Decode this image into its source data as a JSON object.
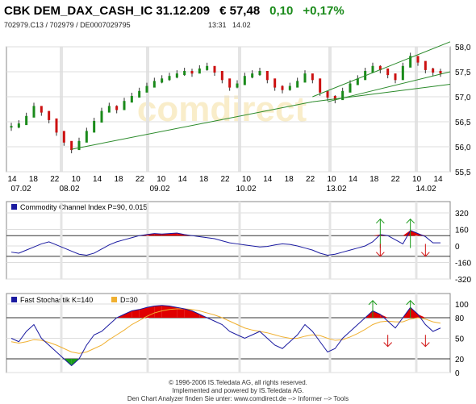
{
  "header": {
    "name": "CBK DEM_DAX_CASH_IC 31.12.209",
    "price": "€ 57,48",
    "change": "0,10",
    "change_pct": "+0,17%",
    "change_color": "#1a8a1a"
  },
  "subheader": {
    "ids": "702979.C13  /  702979  /  DE0007029795",
    "time": "13:31",
    "date": "14.02"
  },
  "watermark": "comdirect",
  "chart_data": [
    {
      "type": "line",
      "panel": "price",
      "x_tick_labels": [
        "14",
        "18",
        "22",
        "10",
        "14",
        "18",
        "22",
        "10",
        "14",
        "18",
        "22",
        "10",
        "14",
        "18",
        "22",
        "10",
        "14",
        "18",
        "22",
        "10",
        "14"
      ],
      "x_date_labels": [
        "07.02",
        "08.02",
        "09.02",
        "10.02",
        "13.02",
        "14.02"
      ],
      "y_tick_labels": [
        "58,0",
        "57,5",
        "57,0",
        "56,5",
        "56,0",
        "55,5"
      ],
      "ylim": [
        55.5,
        58.0
      ],
      "series": [
        {
          "values": [
            56.4,
            56.45,
            56.6,
            56.8,
            56.7,
            56.55,
            56.3,
            56.1,
            55.95,
            56.1,
            56.3,
            56.5,
            56.7,
            56.8,
            56.75,
            56.9,
            57.0,
            57.1,
            57.2,
            57.3,
            57.35,
            57.4,
            57.45,
            57.5,
            57.48,
            57.55,
            57.6,
            57.5,
            57.35,
            57.2,
            57.25,
            57.4,
            57.45,
            57.5,
            57.35,
            57.2,
            57.15,
            57.2,
            57.3,
            57.45,
            57.35,
            57.1,
            57.0,
            56.95,
            57.1,
            57.25,
            57.35,
            57.5,
            57.6,
            57.55,
            57.45,
            57.35,
            57.6,
            57.8,
            57.7,
            57.55,
            57.5,
            57.48
          ]
        }
      ],
      "candles": true,
      "trendlines": 4,
      "grid": true
    },
    {
      "type": "line",
      "panel": "cci",
      "legend": "Commodity Channel Index P=90, 0.015",
      "y_tick_labels": [
        "320",
        "160",
        "0",
        "-160",
        "-320"
      ],
      "ylim": [
        -320,
        320
      ],
      "series": [
        {
          "values": [
            -60,
            -70,
            -40,
            -10,
            20,
            40,
            10,
            -20,
            -50,
            -80,
            -90,
            -70,
            -30,
            10,
            40,
            60,
            80,
            100,
            110,
            120,
            115,
            120,
            125,
            110,
            100,
            90,
            80,
            70,
            50,
            30,
            20,
            10,
            0,
            -10,
            -5,
            10,
            20,
            15,
            0,
            -20,
            -40,
            -70,
            -90,
            -80,
            -60,
            -40,
            -20,
            0,
            40,
            110,
            100,
            60,
            20,
            150,
            120,
            90,
            30,
            30
          ]
        }
      ],
      "fill_above": 100,
      "fill_below": -100
    },
    {
      "type": "line",
      "panel": "stochastic",
      "legend": [
        "Fast Stochastik K=140",
        "D=30"
      ],
      "y_tick_labels": [
        "100",
        "80",
        "50",
        "20",
        "0"
      ],
      "ylim": [
        0,
        100
      ],
      "series": [
        {
          "values": [
            50,
            45,
            60,
            70,
            50,
            40,
            30,
            20,
            10,
            20,
            40,
            55,
            60,
            70,
            80,
            85,
            90,
            92,
            95,
            97,
            98,
            97,
            95,
            93,
            90,
            85,
            80,
            75,
            70,
            60,
            55,
            50,
            55,
            60,
            50,
            40,
            35,
            45,
            55,
            70,
            60,
            45,
            30,
            35,
            50,
            60,
            70,
            80,
            90,
            85,
            75,
            65,
            80,
            95,
            85,
            70,
            60,
            65
          ]
        },
        {
          "values": [
            45,
            43,
            45,
            48,
            47,
            44,
            40,
            35,
            30,
            28,
            30,
            35,
            40,
            48,
            55,
            62,
            70,
            76,
            82,
            87,
            90,
            92,
            93,
            93,
            92,
            90,
            87,
            84,
            80,
            75,
            70,
            65,
            62,
            60,
            58,
            55,
            52,
            50,
            50,
            53,
            55,
            54,
            50,
            47,
            48,
            52,
            57,
            63,
            70,
            74,
            75,
            74,
            74,
            78,
            80,
            78,
            74,
            72
          ]
        }
      ],
      "k_color": "#1a1aa0",
      "d_color": "#f0b030",
      "fill_above": 80,
      "fill_below": 20
    }
  ],
  "footer": {
    "line1": "© 1996-2006 IS.Teledata AG, all rights reserved.",
    "line2": "Implemented and powered by IS.Teledata AG.",
    "line3": "Den Chart Analyzer finden Sie unter: www.comdirect.de --> Informer --> Tools"
  }
}
